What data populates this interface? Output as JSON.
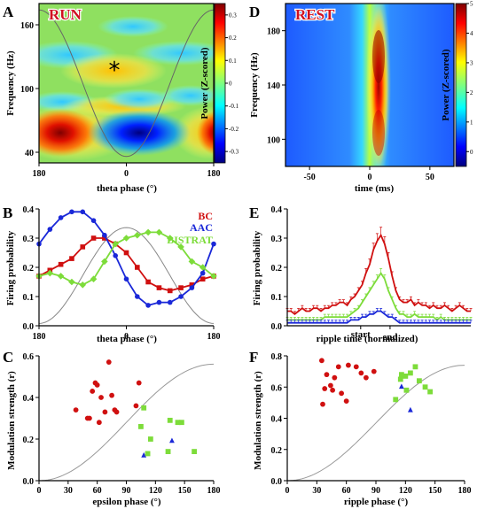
{
  "panels": {
    "A": "A",
    "B": "B",
    "C": "C",
    "D": "D",
    "E": "E",
    "F": "F"
  },
  "chart_data": [
    {
      "id": "A",
      "type": "heatmap",
      "overlay_label": "RUN",
      "annotation": "*",
      "xlabel": "theta phase (°)",
      "ylabel": "Frequency (Hz)",
      "x_ticks": [
        "180",
        "0",
        "180"
      ],
      "y_ticks": [
        "40",
        "100",
        "160"
      ],
      "ylim": [
        30,
        180
      ],
      "colorbar": {
        "label": "Power (Z-scored)",
        "ticks": [
          "0.3",
          "0.2",
          "0.1",
          "0",
          "-0.1",
          "-0.2",
          "-0.3"
        ],
        "range": [
          -0.35,
          0.35
        ]
      }
    },
    {
      "id": "D",
      "type": "heatmap",
      "overlay_label": "REST",
      "xlabel": "time (ms)",
      "ylabel": "Frequency (Hz)",
      "x_ticks": [
        "-50",
        "0",
        "50"
      ],
      "y_ticks": [
        "100",
        "140",
        "180"
      ],
      "xlim": [
        -70,
        70
      ],
      "ylim": [
        80,
        200
      ],
      "colorbar": {
        "label": "Power (Z-scored)",
        "ticks": [
          "5",
          "4",
          "3",
          "2",
          "1",
          "0"
        ],
        "range": [
          -0.5,
          5
        ]
      }
    },
    {
      "id": "B",
      "type": "line",
      "xlabel": "theta phase (°)",
      "ylabel": "Firing probability",
      "x_ticks": [
        "180",
        "0",
        "180"
      ],
      "y_ticks": [
        "0.0",
        "0.1",
        "0.2",
        "0.3",
        "0.4"
      ],
      "ylim": [
        0,
        0.4
      ],
      "series": [
        {
          "name": "BC",
          "color": "#d01010",
          "marker": "square",
          "values": [
            0.17,
            0.19,
            0.21,
            0.23,
            0.27,
            0.3,
            0.3,
            0.28,
            0.25,
            0.2,
            0.15,
            0.13,
            0.12,
            0.13,
            0.14,
            0.16,
            0.17
          ]
        },
        {
          "name": "AAC",
          "color": "#1a28d8",
          "marker": "circle",
          "values": [
            0.28,
            0.33,
            0.37,
            0.39,
            0.39,
            0.36,
            0.31,
            0.24,
            0.16,
            0.1,
            0.07,
            0.08,
            0.08,
            0.1,
            0.13,
            0.18,
            0.28
          ]
        },
        {
          "name": "BISTRAT",
          "color": "#7ddc3a",
          "marker": "diamond",
          "values": [
            0.17,
            0.18,
            0.17,
            0.15,
            0.14,
            0.16,
            0.22,
            0.28,
            0.3,
            0.31,
            0.32,
            0.32,
            0.3,
            0.27,
            0.22,
            0.2,
            0.17
          ]
        }
      ]
    },
    {
      "id": "E",
      "type": "line",
      "xlabel": "ripple time (normalized)",
      "ylabel": "Firing probability",
      "x_ticks": [
        "start",
        "end"
      ],
      "y_ticks": [
        "0.0",
        "0.1",
        "0.2",
        "0.3",
        "0.4"
      ],
      "ylim": [
        0,
        0.4
      ],
      "series": [
        {
          "color": "#d01010",
          "values": [
            0.05,
            0.05,
            0.04,
            0.05,
            0.06,
            0.05,
            0.05,
            0.06,
            0.06,
            0.05,
            0.06,
            0.06,
            0.07,
            0.07,
            0.08,
            0.08,
            0.07,
            0.09,
            0.1,
            0.12,
            0.14,
            0.18,
            0.21,
            0.26,
            0.29,
            0.31,
            0.28,
            0.23,
            0.17,
            0.12,
            0.09,
            0.08,
            0.08,
            0.09,
            0.07,
            0.08,
            0.07,
            0.07,
            0.06,
            0.07,
            0.06,
            0.06,
            0.07,
            0.06,
            0.05,
            0.06,
            0.07,
            0.06,
            0.05,
            0.05
          ]
        },
        {
          "color": "#7ddc3a",
          "values": [
            0.02,
            0.02,
            0.02,
            0.02,
            0.02,
            0.02,
            0.02,
            0.02,
            0.02,
            0.02,
            0.03,
            0.03,
            0.03,
            0.03,
            0.03,
            0.03,
            0.03,
            0.04,
            0.05,
            0.06,
            0.08,
            0.1,
            0.12,
            0.14,
            0.16,
            0.18,
            0.16,
            0.12,
            0.09,
            0.06,
            0.04,
            0.04,
            0.03,
            0.03,
            0.04,
            0.03,
            0.03,
            0.03,
            0.03,
            0.03,
            0.02,
            0.03,
            0.02,
            0.02,
            0.02,
            0.02,
            0.02,
            0.02,
            0.02,
            0.02
          ]
        },
        {
          "color": "#1a28d8",
          "values": [
            0.01,
            0.01,
            0.01,
            0.01,
            0.01,
            0.01,
            0.01,
            0.01,
            0.01,
            0.01,
            0.01,
            0.01,
            0.01,
            0.01,
            0.01,
            0.01,
            0.01,
            0.02,
            0.02,
            0.02,
            0.03,
            0.03,
            0.04,
            0.04,
            0.05,
            0.05,
            0.04,
            0.03,
            0.03,
            0.02,
            0.01,
            0.01,
            0.01,
            0.01,
            0.01,
            0.01,
            0.01,
            0.01,
            0.01,
            0.01,
            0.01,
            0.01,
            0.01,
            0.01,
            0.01,
            0.01,
            0.01,
            0.01,
            0.01,
            0.01
          ]
        }
      ]
    },
    {
      "id": "C",
      "type": "scatter",
      "xlabel": "epsilon phase (°)",
      "ylabel": "Modulation strength (r)",
      "x_ticks": [
        "0",
        "30",
        "60",
        "90",
        "120",
        "150",
        "180"
      ],
      "y_ticks": [
        "0.0",
        "0.2",
        "0.4",
        "0.6"
      ],
      "xlim": [
        0,
        180
      ],
      "ylim": [
        0,
        0.6
      ],
      "series": [
        {
          "color": "#d01010",
          "marker": "circle",
          "points": [
            [
              38,
              0.34
            ],
            [
              50,
              0.3
            ],
            [
              52,
              0.3
            ],
            [
              55,
              0.43
            ],
            [
              58,
              0.47
            ],
            [
              60,
              0.46
            ],
            [
              62,
              0.28
            ],
            [
              64,
              0.4
            ],
            [
              68,
              0.33
            ],
            [
              72,
              0.57
            ],
            [
              75,
              0.41
            ],
            [
              78,
              0.34
            ],
            [
              80,
              0.33
            ],
            [
              100,
              0.36
            ],
            [
              103,
              0.47
            ]
          ]
        },
        {
          "color": "#1a28d8",
          "marker": "triangle",
          "points": [
            [
              108,
              0.12
            ],
            [
              137,
              0.19
            ]
          ]
        },
        {
          "color": "#7ddc3a",
          "marker": "square",
          "points": [
            [
              105,
              0.26
            ],
            [
              108,
              0.35
            ],
            [
              112,
              0.13
            ],
            [
              115,
              0.2
            ],
            [
              133,
              0.14
            ],
            [
              135,
              0.29
            ],
            [
              143,
              0.28
            ],
            [
              147,
              0.28
            ],
            [
              160,
              0.14
            ]
          ]
        }
      ]
    },
    {
      "id": "F",
      "type": "scatter",
      "xlabel": "ripple phase (°)",
      "ylabel": "Modulation strength (r)",
      "x_ticks": [
        "0",
        "30",
        "60",
        "90",
        "120",
        "150",
        "180"
      ],
      "y_ticks": [
        "0.0",
        "0.2",
        "0.4",
        "0.6",
        "0.8"
      ],
      "xlim": [
        0,
        180
      ],
      "ylim": [
        0,
        0.8
      ],
      "series": [
        {
          "color": "#d01010",
          "marker": "circle",
          "points": [
            [
              35,
              0.77
            ],
            [
              36,
              0.49
            ],
            [
              38,
              0.59
            ],
            [
              40,
              0.68
            ],
            [
              44,
              0.61
            ],
            [
              46,
              0.58
            ],
            [
              48,
              0.66
            ],
            [
              52,
              0.73
            ],
            [
              55,
              0.56
            ],
            [
              60,
              0.51
            ],
            [
              62,
              0.74
            ],
            [
              70,
              0.73
            ],
            [
              75,
              0.69
            ],
            [
              80,
              0.66
            ],
            [
              88,
              0.7
            ]
          ]
        },
        {
          "color": "#1a28d8",
          "marker": "triangle",
          "points": [
            [
              116,
              0.6
            ],
            [
              125,
              0.45
            ]
          ]
        },
        {
          "color": "#7ddc3a",
          "marker": "square",
          "points": [
            [
              110,
              0.52
            ],
            [
              115,
              0.65
            ],
            [
              116,
              0.68
            ],
            [
              120,
              0.67
            ],
            [
              121,
              0.58
            ],
            [
              125,
              0.69
            ],
            [
              130,
              0.73
            ],
            [
              134,
              0.64
            ],
            [
              140,
              0.6
            ],
            [
              145,
              0.57
            ]
          ]
        }
      ]
    }
  ]
}
